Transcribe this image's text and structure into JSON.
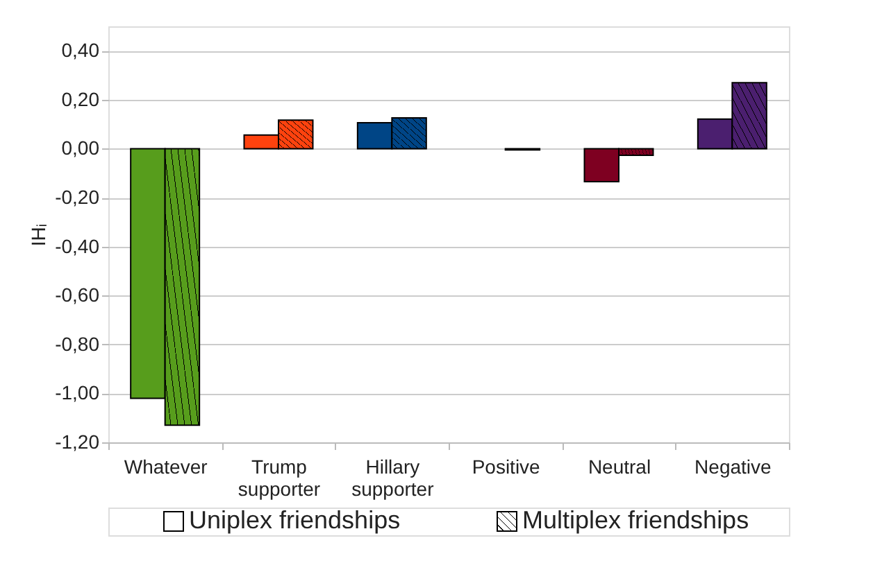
{
  "chart_data": {
    "type": "bar",
    "categories": [
      "Whatever",
      "Trump supporter",
      "Hillary supporter",
      "Positive",
      "Neutral",
      "Negative"
    ],
    "ylabel": "IHᵢ",
    "series": [
      {
        "name": "Uniplex friendships",
        "colors": [
          "#579d1c",
          "#ff420e",
          "#004586",
          "#ffd320",
          "#7e0021",
          "#4b1f6f"
        ],
        "values": [
          -1.02,
          0.056,
          0.106,
          null,
          -0.135,
          0.121
        ]
      },
      {
        "name": "Multiplex friendships",
        "colors": [
          "#579d1c",
          "#ff420e",
          "#004586",
          "#ffd320",
          "#7e0021",
          "#4b1f6f"
        ],
        "values": [
          -1.13,
          0.117,
          0.126,
          -0.005,
          -0.027,
          0.27
        ]
      }
    ],
    "ylim": [
      -1.2,
      0.5
    ],
    "yticks": [
      {
        "value": 0.4,
        "label": "0,40"
      },
      {
        "value": 0.2,
        "label": "0,20"
      },
      {
        "value": 0,
        "label": "0,00"
      },
      {
        "value": -0.2,
        "label": "-0,20"
      },
      {
        "value": -0.4,
        "label": "-0,40"
      },
      {
        "value": -0.6,
        "label": "-0,60"
      },
      {
        "value": -0.8,
        "label": "-0,80"
      },
      {
        "value": -1.0,
        "label": "-1,00"
      },
      {
        "value": -1.2,
        "label": "-1,20"
      }
    ],
    "grid": "y",
    "legend": "bottom"
  }
}
